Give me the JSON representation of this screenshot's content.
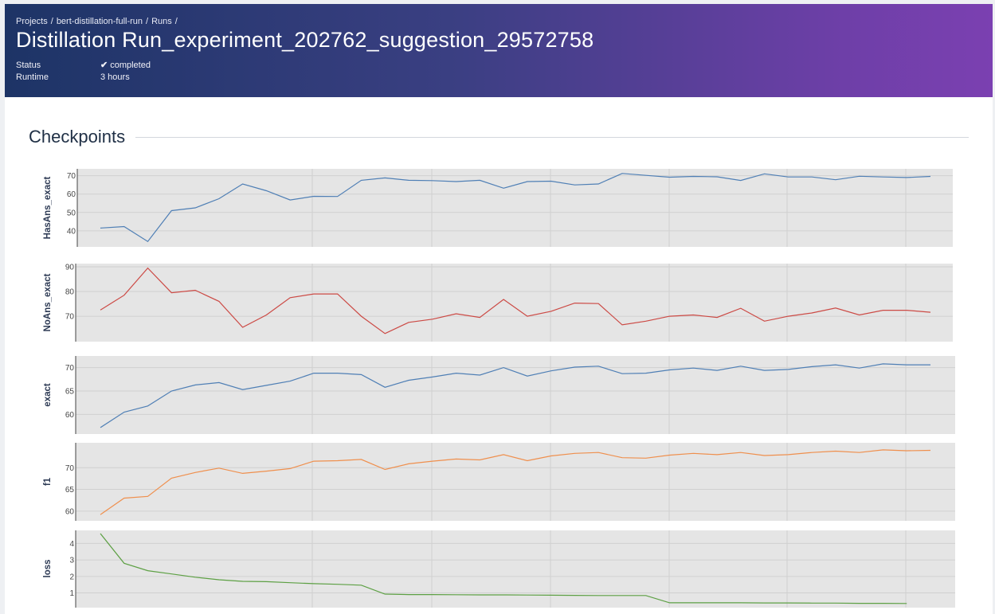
{
  "header": {
    "breadcrumb": [
      {
        "label": "Projects"
      },
      {
        "label": "bert-distillation-full-run"
      },
      {
        "label": "Runs"
      }
    ],
    "title": "Distillation Run_experiment_202762_suggestion_29572758",
    "status_label": "Status",
    "status_value": "completed",
    "runtime_label": "Runtime",
    "runtime_value": "3 hours"
  },
  "section": {
    "title": "Checkpoints"
  },
  "chart_data": [
    {
      "type": "line",
      "ylabel": "HasAns_exact",
      "color": "#4f7fb5",
      "ylim": [
        33,
        72
      ],
      "yticks": [
        40,
        50,
        60,
        70
      ],
      "values": [
        41.5,
        42.3,
        34.2,
        51,
        52.5,
        57.5,
        65.5,
        61.8,
        56.8,
        58.8,
        58.7,
        67.5,
        68.8,
        67.5,
        67.3,
        66.8,
        67.5,
        63.2,
        66.8,
        67,
        65,
        65.5,
        71.2,
        70.2,
        69.2,
        69.6,
        69.4,
        67.4,
        71,
        69.3,
        69.3,
        67.8,
        69.7,
        69.3,
        69,
        69.6
      ]
    },
    {
      "type": "line",
      "ylabel": "NoAns_exact",
      "color": "#cc4a45",
      "ylim": [
        61,
        90
      ],
      "yticks": [
        70,
        80,
        90
      ],
      "values": [
        72.5,
        78.5,
        89.5,
        79.5,
        80.5,
        76,
        65.5,
        70.5,
        77.5,
        79,
        79,
        70,
        63,
        67.5,
        68.8,
        71,
        69.5,
        76.8,
        70,
        72,
        75.3,
        75.1,
        66.5,
        68,
        70,
        70.5,
        69.5,
        73.2,
        68,
        70,
        71.3,
        73.3,
        70.5,
        72.4,
        72.4,
        71.6
      ]
    },
    {
      "type": "line",
      "ylabel": "exact",
      "color": "#4f7fb5",
      "ylim": [
        56.5,
        71.8
      ],
      "yticks": [
        60,
        65,
        70
      ],
      "values": [
        57.2,
        60.5,
        61.8,
        65,
        66.3,
        66.8,
        65.3,
        66.2,
        67.1,
        68.8,
        68.8,
        68.5,
        65.8,
        67.3,
        68,
        68.8,
        68.4,
        70,
        68.2,
        69.3,
        70.1,
        70.3,
        68.7,
        68.8,
        69.5,
        69.9,
        69.4,
        70.3,
        69.4,
        69.6,
        70.2,
        70.6,
        69.9,
        70.8,
        70.6,
        70.6
      ]
    },
    {
      "type": "line",
      "ylabel": "f1",
      "color": "#ef8f4d",
      "ylim": [
        58.5,
        75
      ],
      "yticks": [
        60,
        65,
        70
      ],
      "values": [
        59.2,
        63,
        63.4,
        67.6,
        68.9,
        69.9,
        68.7,
        69.2,
        69.8,
        71.5,
        71.6,
        71.9,
        69.6,
        70.9,
        71.5,
        72,
        71.8,
        73,
        71.6,
        72.7,
        73.3,
        73.5,
        72.3,
        72.2,
        72.9,
        73.3,
        73,
        73.5,
        72.8,
        73,
        73.5,
        73.8,
        73.5,
        74.1,
        73.9,
        74
      ]
    },
    {
      "type": "line",
      "ylabel": "loss",
      "color": "#5da044",
      "ylim": [
        0.3,
        4.6
      ],
      "yticks": [
        1,
        2,
        3,
        4
      ],
      "values": [
        4.6,
        2.8,
        2.35,
        2.15,
        1.95,
        1.8,
        1.7,
        1.68,
        1.62,
        1.56,
        1.52,
        1.47,
        0.93,
        0.9,
        0.9,
        0.89,
        0.88,
        0.88,
        0.87,
        0.86,
        0.85,
        0.84,
        0.84,
        0.84,
        0.4,
        0.4,
        0.4,
        0.4,
        0.39,
        0.39,
        0.38,
        0.38,
        0.37,
        0.37,
        0.36
      ]
    }
  ]
}
